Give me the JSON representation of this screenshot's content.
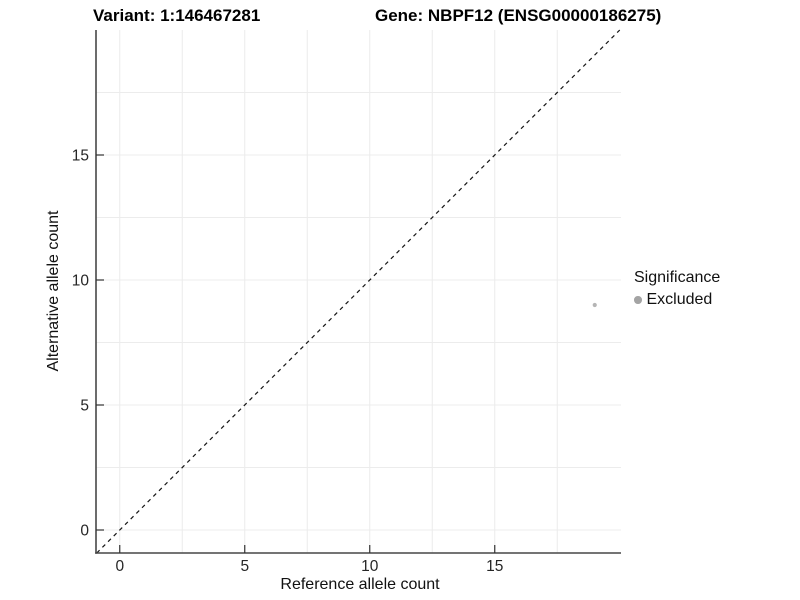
{
  "title": {
    "variant": "Variant: 1:146467281",
    "gene": "Gene: NBPF12 (ENSG00000186275)"
  },
  "axes": {
    "x_label": "Reference allele count",
    "y_label": "Alternative allele count"
  },
  "legend": {
    "title": "Significance",
    "items": [
      {
        "label": "Excluded",
        "color": "#a4a4a4"
      }
    ]
  },
  "colors": {
    "background": "#ffffff",
    "axis_line": "#474747",
    "tick_mark": "#333333",
    "tick_label": "#262626",
    "grid_line": "#ececec",
    "reference_line": "#151515",
    "point": "#b5b5b5",
    "legend_dot": "#a4a4a4"
  },
  "chart_data": {
    "type": "scatter",
    "title": "Variant: 1:146467281   Gene: NBPF12 (ENSG00000186275)",
    "xlabel": "Reference allele count",
    "ylabel": "Alternative allele count",
    "xlim": [
      -0.95,
      20.05
    ],
    "ylim": [
      -0.92,
      20.0
    ],
    "x_ticks": [
      0,
      5,
      10,
      15
    ],
    "y_ticks": [
      0,
      5,
      10,
      15
    ],
    "grid_x": [
      0,
      2.5,
      5,
      7.5,
      10,
      12.5,
      15,
      17.5
    ],
    "grid_y": [
      0,
      2.5,
      5,
      7.5,
      10,
      12.5,
      15,
      17.5
    ],
    "grid": true,
    "tick_direction": "in",
    "tick_length": 8,
    "series": [
      {
        "name": "Excluded",
        "color": "#b5b5b5",
        "point_radius": 2.1,
        "points": [
          {
            "x": 19,
            "y": 9
          }
        ]
      }
    ],
    "reference_line": {
      "kind": "identity",
      "slope": 1,
      "intercept": 0,
      "style": "dashed"
    },
    "legend_position": "right"
  }
}
